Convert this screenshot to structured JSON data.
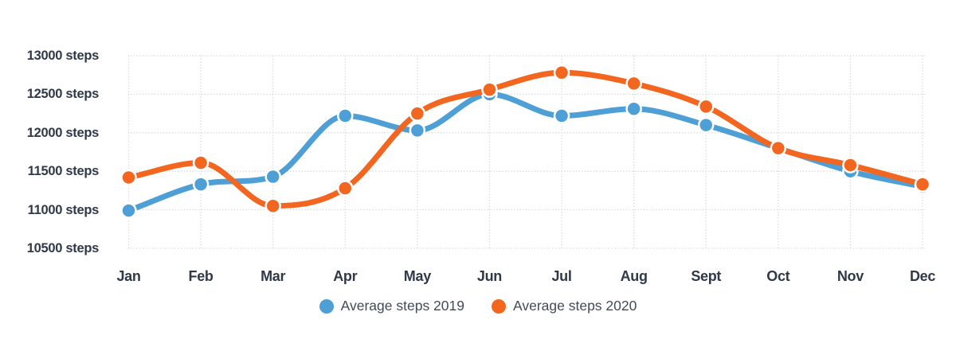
{
  "chart_data": {
    "type": "line",
    "title": "",
    "categories": [
      "Jan",
      "Feb",
      "Mar",
      "Apr",
      "May",
      "Jun",
      "Jul",
      "Aug",
      "Sept",
      "Oct",
      "Nov",
      "Dec"
    ],
    "series": [
      {
        "name": "Average steps 2019",
        "color": "#4d9fd6",
        "values": [
          10990,
          11330,
          11430,
          12220,
          12030,
          12500,
          12220,
          12310,
          12100,
          11800,
          11500,
          11300
        ]
      },
      {
        "name": "Average steps 2020",
        "color": "#f2661f",
        "values": [
          11420,
          11610,
          11050,
          11280,
          12250,
          12560,
          12780,
          12640,
          12340,
          11800,
          11580,
          11330
        ]
      }
    ],
    "ylim": [
      10500,
      13000
    ],
    "ytick_step": 500,
    "yticks": [
      {
        "value": 13000,
        "label": "13000 steps"
      },
      {
        "value": 12500,
        "label": "12500 steps"
      },
      {
        "value": 12000,
        "label": "12000 steps"
      },
      {
        "value": 11500,
        "label": "11500 steps"
      },
      {
        "value": 11000,
        "label": "11000 steps"
      },
      {
        "value": 10500,
        "label": "10500 steps"
      }
    ],
    "xlabel": "",
    "ylabel": "",
    "grid": "dotted",
    "legend_position": "bottom",
    "line_style": "smooth-monotone",
    "colors": {
      "grid": "#d7d7d7",
      "tick_text": "#2f3948",
      "legend_text": "#414b57",
      "background": "#ffffff"
    }
  }
}
